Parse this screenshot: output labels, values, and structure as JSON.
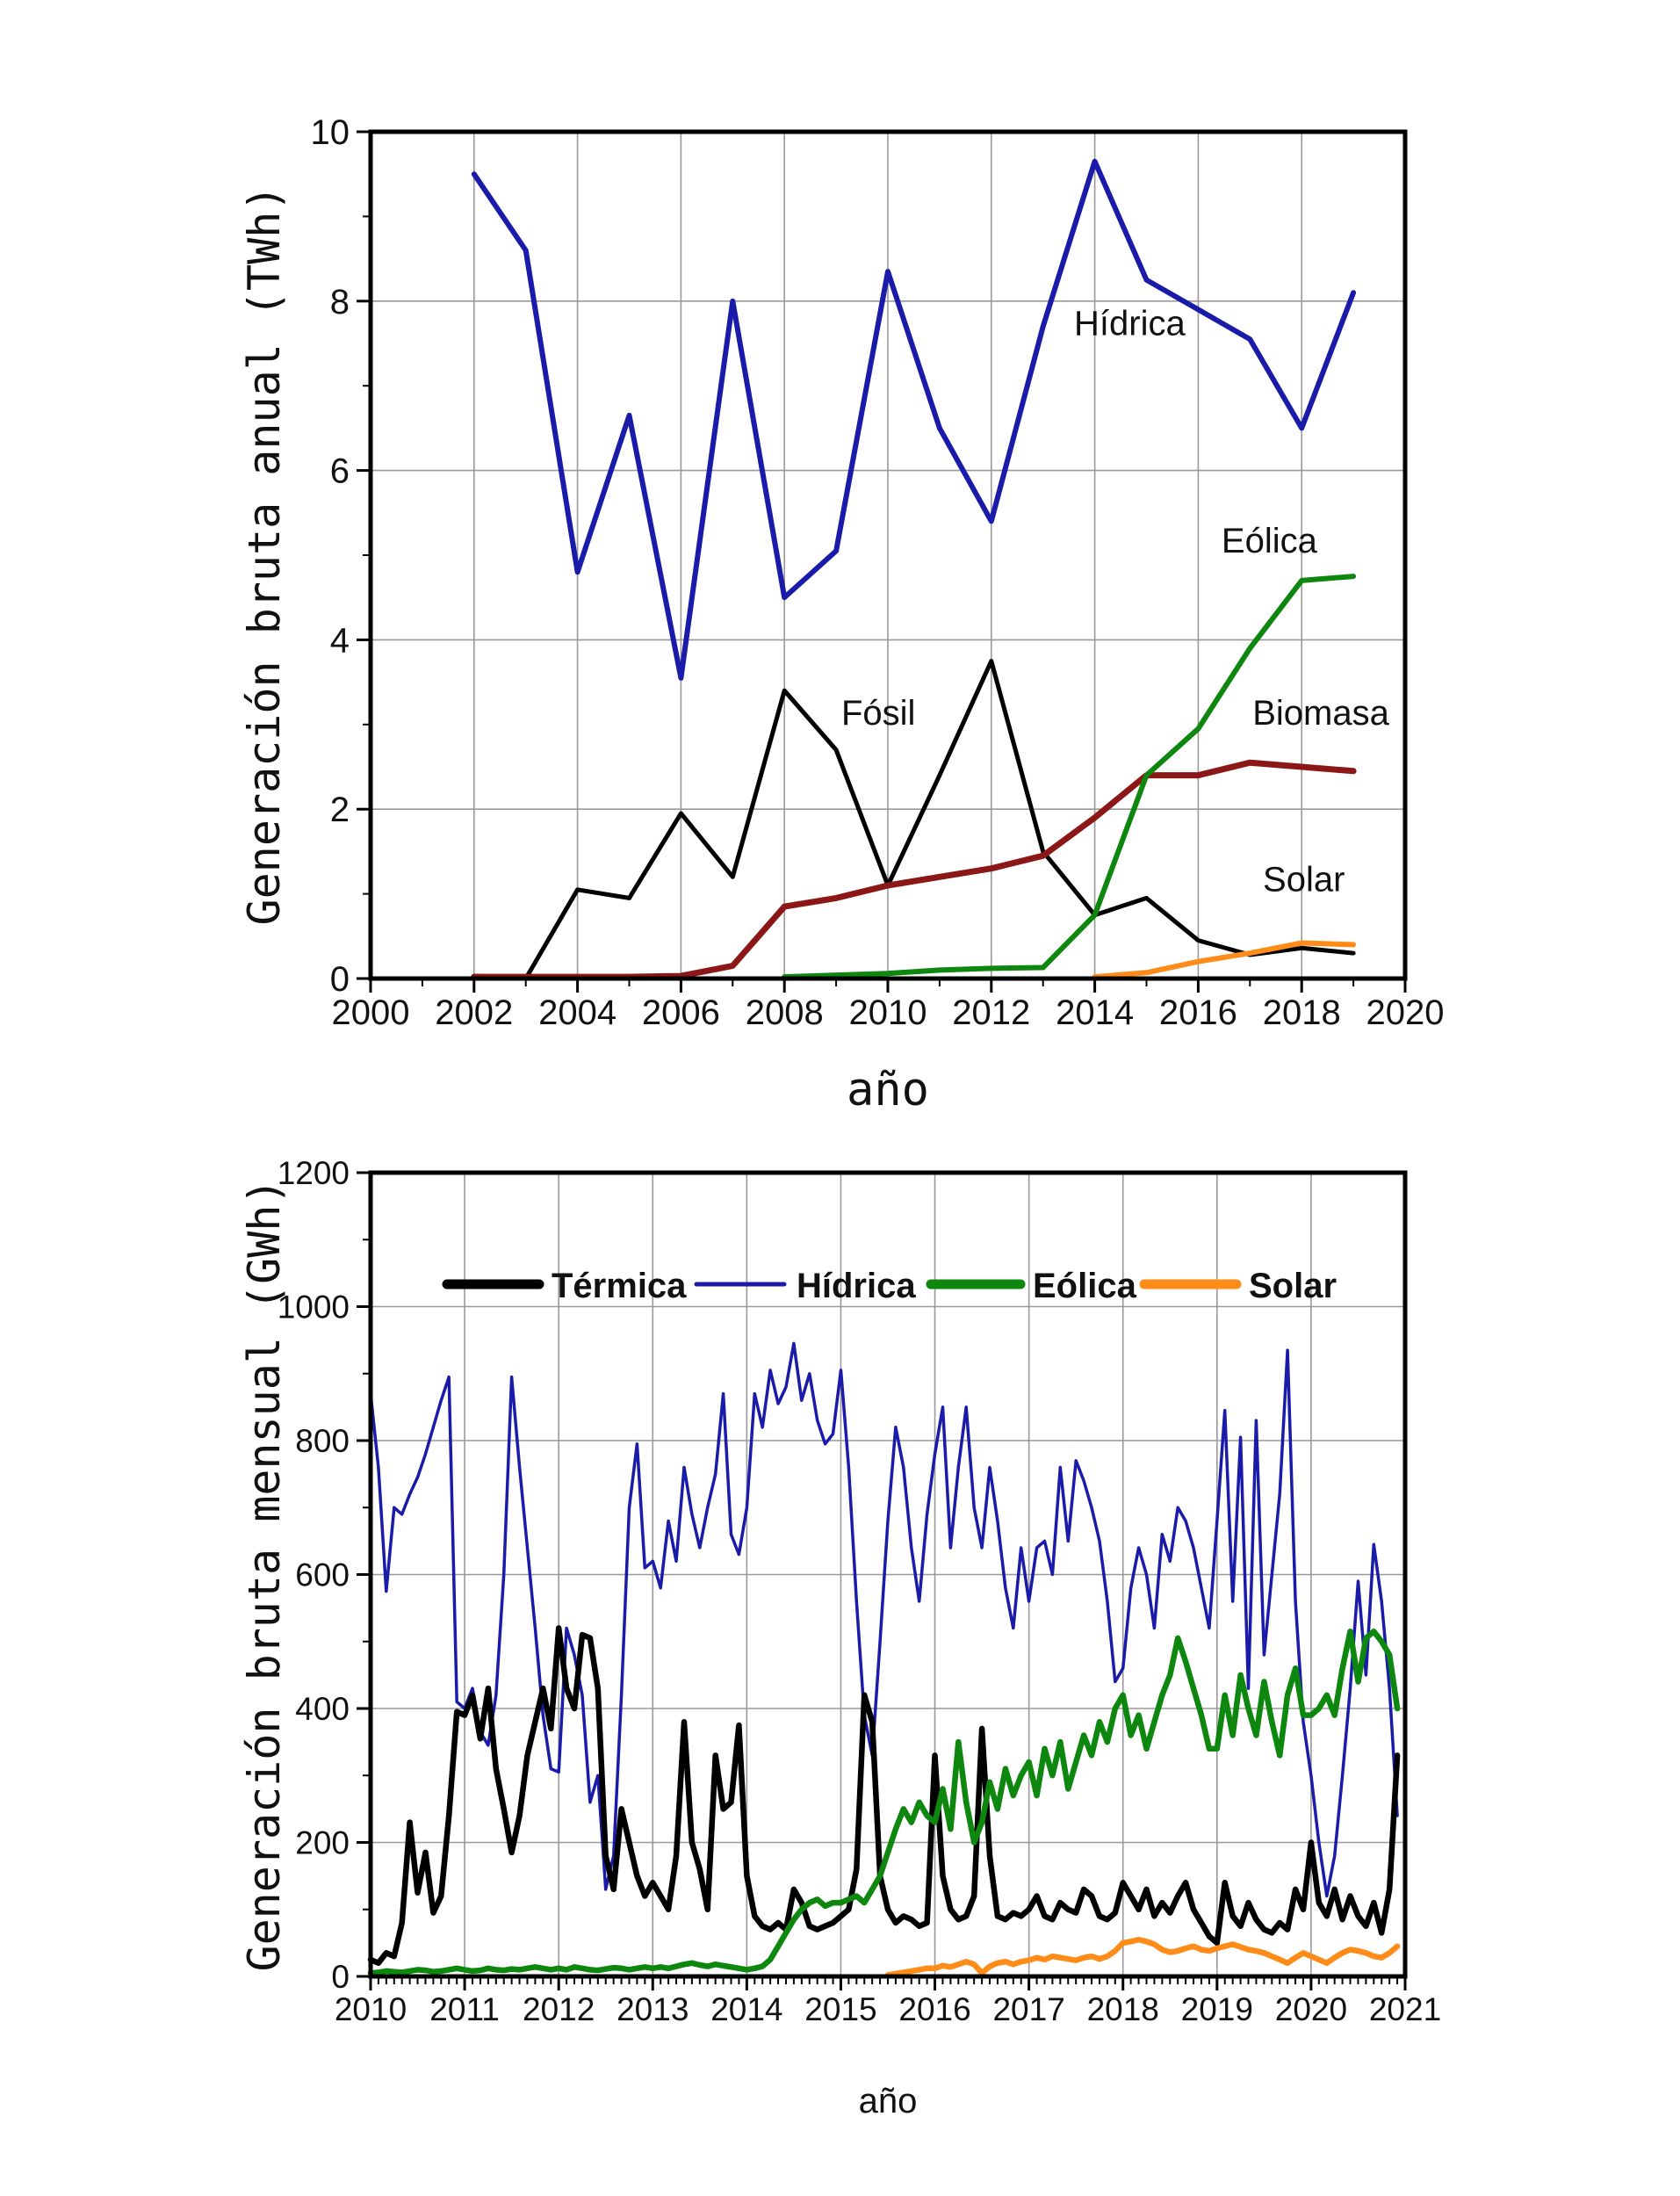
{
  "figure": {
    "background": "#ffffff"
  },
  "chart_data": [
    {
      "id": "annual",
      "type": "line",
      "title": "",
      "xlabel": "año",
      "ylabel": "Generación bruta anual (TWh)",
      "x_range": [
        2000,
        2020
      ],
      "y_range": [
        0,
        10
      ],
      "x_ticks": [
        2000,
        2002,
        2004,
        2006,
        2008,
        2010,
        2012,
        2014,
        2016,
        2018,
        2020
      ],
      "x_minor_step": 1,
      "y_ticks": [
        0,
        2,
        4,
        6,
        8,
        10
      ],
      "y_minor_step": 1,
      "grid": true,
      "grid_color": "#999999",
      "series": [
        {
          "name": "Hídrica",
          "color": "#1b1baa",
          "width": 6,
          "x_start": 2002,
          "x_step": 1,
          "values": [
            9.5,
            8.6,
            4.8,
            6.65,
            3.55,
            8.0,
            4.5,
            5.05,
            8.35,
            6.5,
            5.4,
            7.7,
            9.65,
            8.25,
            7.9,
            7.55,
            6.5,
            8.1
          ]
        },
        {
          "name": "Fósil",
          "color": "#000000",
          "width": 5,
          "x_start": 2002,
          "x_step": 1,
          "values": [
            0.03,
            0.0,
            1.05,
            0.95,
            1.95,
            1.2,
            3.4,
            2.7,
            1.1,
            2.4,
            3.75,
            1.5,
            0.75,
            0.95,
            0.45,
            0.28,
            0.36,
            0.3
          ]
        },
        {
          "name": "Biomasa",
          "color": "#8b1717",
          "width": 7,
          "x_start": 2002,
          "x_step": 1,
          "values": [
            0.02,
            0.02,
            0.02,
            0.02,
            0.03,
            0.15,
            0.85,
            0.95,
            1.1,
            1.2,
            1.3,
            1.45,
            1.9,
            2.4,
            2.4,
            2.55,
            2.5,
            2.45
          ]
        },
        {
          "name": "Eólica",
          "color": "#0e870e",
          "width": 6,
          "x_start": 2008,
          "x_step": 1,
          "values": [
            0.02,
            0.04,
            0.06,
            0.1,
            0.12,
            0.13,
            0.75,
            2.4,
            2.95,
            3.9,
            4.7,
            4.75
          ]
        },
        {
          "name": "Solar",
          "color": "#ff8c19",
          "width": 6,
          "x_start": 2014,
          "x_step": 1,
          "values": [
            0.02,
            0.07,
            0.2,
            0.3,
            0.42,
            0.4
          ]
        }
      ],
      "annotations": [
        {
          "text": "Hídrica",
          "x": 2013.6,
          "y": 7.6
        },
        {
          "text": "Eólica",
          "x": 2016.45,
          "y": 5.03
        },
        {
          "text": "Biomasa",
          "x": 2017.05,
          "y": 3.0
        },
        {
          "text": "Fósil",
          "x": 2009.1,
          "y": 3.0
        },
        {
          "text": "Solar",
          "x": 2017.25,
          "y": 1.03
        }
      ]
    },
    {
      "id": "monthly",
      "type": "line",
      "title": "",
      "xlabel": "año",
      "ylabel": "Generación bruta mensual (GWh)",
      "x_range": [
        2010,
        2021
      ],
      "y_range": [
        0,
        1200
      ],
      "x_ticks": [
        2010,
        2011,
        2012,
        2013,
        2014,
        2015,
        2016,
        2017,
        2018,
        2019,
        2020,
        2021
      ],
      "x_minor_step": 0.0833333,
      "y_ticks": [
        0,
        200,
        400,
        600,
        800,
        1000,
        1200
      ],
      "y_minor_step": 100,
      "grid": true,
      "grid_color": "#999999",
      "legend_order": [
        "Térmica",
        "Hídrica",
        "Eólica",
        "Solar"
      ],
      "series": [
        {
          "name": "Hídrica",
          "color": "#1b1baa",
          "width": 3.5,
          "x_start": 2010,
          "x_step": 0.0833333,
          "values": [
            870,
            760,
            575,
            700,
            690,
            720,
            745,
            780,
            820,
            860,
            895,
            410,
            400,
            430,
            365,
            345,
            420,
            600,
            895,
            760,
            640,
            520,
            390,
            310,
            305,
            520,
            480,
            420,
            260,
            300,
            130,
            180,
            420,
            700,
            795,
            610,
            620,
            580,
            680,
            620,
            760,
            690,
            640,
            700,
            750,
            870,
            660,
            630,
            700,
            870,
            820,
            905,
            855,
            880,
            945,
            860,
            900,
            830,
            795,
            810,
            905,
            760,
            560,
            390,
            330,
            500,
            680,
            820,
            760,
            640,
            560,
            690,
            780,
            850,
            640,
            760,
            850,
            700,
            640,
            760,
            680,
            580,
            520,
            640,
            560,
            640,
            650,
            600,
            760,
            650,
            770,
            740,
            700,
            650,
            560,
            440,
            460,
            580,
            640,
            600,
            520,
            660,
            620,
            700,
            680,
            640,
            580,
            520,
            680,
            845,
            560,
            805,
            430,
            830,
            480,
            600,
            720,
            935,
            560,
            380,
            300,
            200,
            120,
            180,
            300,
            430,
            590,
            450,
            645,
            560,
            430,
            240
          ]
        },
        {
          "name": "Térmica",
          "color": "#000000",
          "width": 6.5,
          "x_start": 2010,
          "x_step": 0.0833333,
          "values": [
            25,
            20,
            35,
            30,
            80,
            230,
            125,
            185,
            95,
            120,
            240,
            395,
            390,
            420,
            355,
            430,
            310,
            250,
            185,
            240,
            330,
            380,
            430,
            370,
            520,
            430,
            400,
            510,
            505,
            430,
            180,
            130,
            250,
            200,
            150,
            120,
            140,
            120,
            100,
            180,
            380,
            200,
            160,
            100,
            330,
            250,
            260,
            375,
            150,
            90,
            75,
            70,
            80,
            70,
            130,
            110,
            75,
            70,
            75,
            80,
            90,
            100,
            160,
            420,
            380,
            150,
            100,
            80,
            90,
            85,
            75,
            80,
            330,
            150,
            100,
            85,
            90,
            120,
            370,
            180,
            90,
            85,
            95,
            90,
            100,
            120,
            90,
            85,
            110,
            100,
            95,
            130,
            120,
            90,
            85,
            95,
            140,
            120,
            100,
            130,
            90,
            110,
            95,
            120,
            140,
            100,
            80,
            60,
            50,
            140,
            90,
            75,
            110,
            85,
            70,
            65,
            80,
            70,
            130,
            100,
            200,
            110,
            90,
            130,
            85,
            120,
            90,
            75,
            110,
            65,
            130,
            330
          ]
        },
        {
          "name": "Eólica",
          "color": "#0e870e",
          "width": 6.5,
          "x_start": 2010,
          "x_step": 0.0833333,
          "values": [
            5,
            6,
            8,
            7,
            6,
            8,
            10,
            9,
            7,
            8,
            10,
            12,
            10,
            8,
            9,
            12,
            10,
            9,
            11,
            10,
            12,
            14,
            12,
            10,
            12,
            10,
            14,
            12,
            10,
            9,
            11,
            13,
            12,
            10,
            12,
            14,
            12,
            14,
            12,
            15,
            18,
            20,
            17,
            15,
            18,
            16,
            14,
            12,
            10,
            12,
            15,
            25,
            45,
            65,
            85,
            100,
            110,
            115,
            105,
            110,
            110,
            115,
            120,
            110,
            130,
            150,
            185,
            220,
            250,
            230,
            260,
            240,
            230,
            280,
            220,
            350,
            260,
            200,
            230,
            290,
            250,
            310,
            270,
            300,
            320,
            270,
            340,
            300,
            350,
            280,
            320,
            360,
            330,
            380,
            350,
            400,
            420,
            360,
            390,
            340,
            380,
            420,
            450,
            505,
            470,
            430,
            390,
            340,
            340,
            420,
            360,
            450,
            400,
            360,
            440,
            380,
            330,
            420,
            460,
            390,
            390,
            400,
            420,
            390,
            460,
            515,
            440,
            505,
            515,
            500,
            480,
            400
          ]
        },
        {
          "name": "Solar",
          "color": "#ff8c19",
          "width": 6.5,
          "x_start": 2010,
          "x_step": 0.0833333,
          "values": [
            null,
            null,
            null,
            null,
            null,
            null,
            null,
            null,
            null,
            null,
            null,
            null,
            null,
            null,
            null,
            null,
            null,
            null,
            null,
            null,
            null,
            null,
            null,
            null,
            null,
            null,
            null,
            null,
            null,
            null,
            null,
            null,
            null,
            null,
            null,
            null,
            null,
            null,
            null,
            null,
            null,
            null,
            null,
            null,
            null,
            null,
            null,
            null,
            null,
            null,
            null,
            null,
            null,
            null,
            null,
            null,
            null,
            null,
            null,
            null,
            null,
            null,
            null,
            null,
            null,
            null,
            2,
            4,
            6,
            8,
            10,
            12,
            12,
            16,
            14,
            18,
            22,
            18,
            5,
            15,
            20,
            22,
            18,
            22,
            24,
            28,
            25,
            30,
            28,
            26,
            24,
            28,
            30,
            26,
            30,
            38,
            50,
            52,
            55,
            52,
            48,
            40,
            36,
            38,
            42,
            45,
            40,
            38,
            42,
            45,
            48,
            44,
            40,
            38,
            35,
            30,
            25,
            20,
            28,
            35,
            30,
            25,
            20,
            28,
            35,
            40,
            38,
            35,
            30,
            28,
            35,
            45
          ]
        }
      ]
    }
  ]
}
